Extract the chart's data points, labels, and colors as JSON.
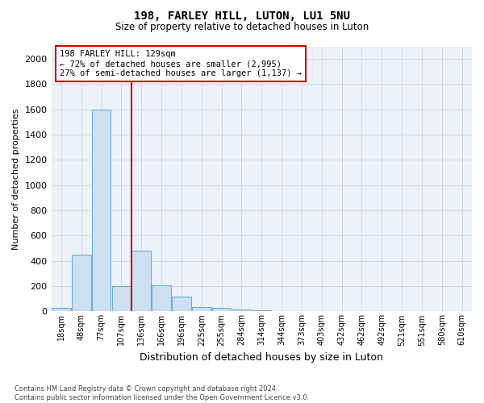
{
  "title1": "198, FARLEY HILL, LUTON, LU1 5NU",
  "title2": "Size of property relative to detached houses in Luton",
  "xlabel": "Distribution of detached houses by size in Luton",
  "ylabel": "Number of detached properties",
  "footnote": "Contains HM Land Registry data © Crown copyright and database right 2024.\nContains public sector information licensed under the Open Government Licence v3.0.",
  "bin_labels": [
    "18sqm",
    "48sqm",
    "77sqm",
    "107sqm",
    "136sqm",
    "166sqm",
    "196sqm",
    "225sqm",
    "255sqm",
    "284sqm",
    "314sqm",
    "344sqm",
    "373sqm",
    "403sqm",
    "432sqm",
    "462sqm",
    "492sqm",
    "521sqm",
    "551sqm",
    "580sqm",
    "610sqm"
  ],
  "bar_values": [
    30,
    450,
    1600,
    200,
    480,
    210,
    115,
    35,
    25,
    18,
    10,
    3,
    0,
    0,
    0,
    0,
    0,
    0,
    0,
    0,
    0
  ],
  "bar_color": "#cce0f0",
  "bar_edge_color": "#6aaed6",
  "vline_x_index": 3.5,
  "vline_color": "#cc0000",
  "annotation_text": "198 FARLEY HILL: 129sqm\n← 72% of detached houses are smaller (2,995)\n27% of semi-detached houses are larger (1,137) →",
  "annotation_box_color": "#ffffff",
  "annotation_box_edge": "#cc0000",
  "ylim": [
    0,
    2100
  ],
  "yticks": [
    0,
    200,
    400,
    600,
    800,
    1000,
    1200,
    1400,
    1600,
    1800,
    2000
  ],
  "grid_color": "#d0d8e8",
  "background_color": "#ffffff",
  "plot_bg_color": "#edf2f9"
}
